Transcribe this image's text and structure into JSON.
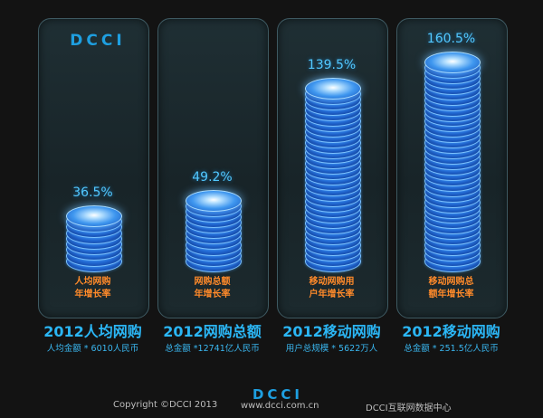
{
  "brand": {
    "logo_text": "DCCI",
    "accent_color": "#1e9fe0",
    "coin_color": "#2d7fe6",
    "percent_color": "#52c8ff",
    "desc_color": "#ff8a2a"
  },
  "chart_data": {
    "type": "bar",
    "categories": [
      "2012人均网购",
      "2012网购总额",
      "2012移动网购",
      "2012移动网购"
    ],
    "values": [
      36.5,
      49.2,
      139.5,
      160.5
    ],
    "value_labels": [
      "36.5%",
      "49.2%",
      "139.5%",
      "160.5%"
    ],
    "unit": "%",
    "ylim": [
      0,
      160.5
    ],
    "grid": false,
    "bar_style": "stacked coins",
    "descriptions": [
      [
        "人均网购",
        "年增长率"
      ],
      [
        "网购总额",
        "年增长率"
      ],
      [
        "移动网购用",
        "户年增长率"
      ],
      [
        "移动网购总",
        "额年增长率"
      ]
    ],
    "subtitles": [
      "人均金额  * 6010人民币",
      "总金额 *12741亿人民币",
      "用户总规模 * 5622万人",
      "总金额 * 251.5亿人民币"
    ]
  },
  "footer": {
    "copyright": "Copyright ©DCCI 2013",
    "url": "www.dcci.com.cn",
    "center": "DCCI互联网数据中心"
  }
}
